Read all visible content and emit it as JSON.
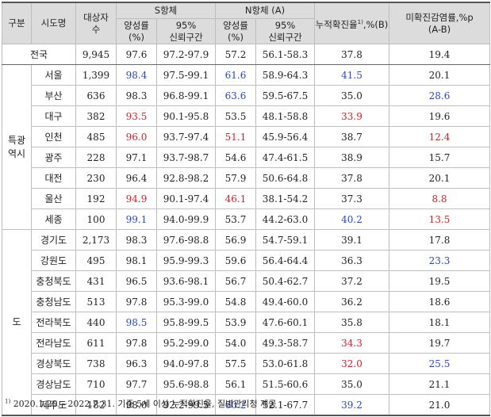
{
  "headers": {
    "group": "구분",
    "region": "시도명",
    "subjects": "대상자\n수",
    "s_antibody": "S항체",
    "n_antibody": "N항체 (A)",
    "cumulative": "누적확진율",
    "cumulative_sup": "1)",
    "cumulative_unit": ",%(B)",
    "undiagnosed": "미확진감염률,%p",
    "undiagnosed_sub": "(A-B)",
    "positivity": "양성률\n(%)",
    "ci": "95%\n신뢰구간"
  },
  "national": {
    "label": "전국",
    "n": "9,945",
    "s_rate": "97.6",
    "s_ci": "97.2-97.9",
    "n_rate": "57.2",
    "n_ci": "56.1-58.3",
    "cum": "37.8",
    "diff": "19.4"
  },
  "groups": [
    {
      "label": "특광\n역시",
      "rows": [
        {
          "region": "서울",
          "n": "1,399",
          "s_rate": "98.4",
          "s_ci": "97.5-99.1",
          "n_rate": "61.6",
          "n_ci": "58.9-64.3",
          "cum": "41.5",
          "diff": "20.1"
        },
        {
          "region": "부산",
          "n": "636",
          "s_rate": "98.3",
          "s_ci": "96.8-99.1",
          "n_rate": "63.6",
          "n_ci": "59.5-67.5",
          "cum": "35.0",
          "diff": "28.6"
        },
        {
          "region": "대구",
          "n": "382",
          "s_rate": "93.5",
          "s_ci": "90.1-95.8",
          "n_rate": "53.5",
          "n_ci": "48.1-58.8",
          "cum": "33.9",
          "diff": "19.6"
        },
        {
          "region": "인천",
          "n": "485",
          "s_rate": "96.0",
          "s_ci": "93.7-97.4",
          "n_rate": "51.1",
          "n_ci": "45.9-56.4",
          "cum": "38.7",
          "diff": "12.4"
        },
        {
          "region": "광주",
          "n": "228",
          "s_rate": "97.1",
          "s_ci": "93.7-98.7",
          "n_rate": "54.6",
          "n_ci": "47.4-61.5",
          "cum": "38.9",
          "diff": "15.7"
        },
        {
          "region": "대전",
          "n": "230",
          "s_rate": "96.4",
          "s_ci": "92.8-98.2",
          "n_rate": "57.9",
          "n_ci": "50.6-64.8",
          "cum": "37.8",
          "diff": "20.1"
        },
        {
          "region": "울산",
          "n": "192",
          "s_rate": "94.9",
          "s_ci": "90.1-97.4",
          "n_rate": "46.1",
          "n_ci": "38.1-54.2",
          "cum": "37.3",
          "diff": "8.8"
        },
        {
          "region": "세종",
          "n": "100",
          "s_rate": "99.1",
          "s_ci": "94.0-99.9",
          "n_rate": "53.7",
          "n_ci": "44.2-63.0",
          "cum": "40.2",
          "diff": "13.5"
        }
      ]
    },
    {
      "label": "도",
      "rows": [
        {
          "region": "경기도",
          "n": "2,173",
          "s_rate": "98.3",
          "s_ci": "97.6-98.8",
          "n_rate": "56.9",
          "n_ci": "54.7-59.1",
          "cum": "39.1",
          "diff": "17.8"
        },
        {
          "region": "강원도",
          "n": "495",
          "s_rate": "98.1",
          "s_ci": "95.9-99.3",
          "n_rate": "59.6",
          "n_ci": "56.4-64.4",
          "cum": "36.3",
          "diff": "23.3"
        },
        {
          "region": "충청북도",
          "n": "431",
          "s_rate": "96.5",
          "s_ci": "93.6-98.1",
          "n_rate": "56.7",
          "n_ci": "50.4-62.7",
          "cum": "37.2",
          "diff": "19.5"
        },
        {
          "region": "충청남도",
          "n": "513",
          "s_rate": "97.8",
          "s_ci": "95.3-99.0",
          "n_rate": "54.8",
          "n_ci": "49.4-60.0",
          "cum": "36.2",
          "diff": "18.6"
        },
        {
          "region": "전라북도",
          "n": "440",
          "s_rate": "98.5",
          "s_ci": "95.8-99.5",
          "n_rate": "53.9",
          "n_ci": "47.6-60.1",
          "cum": "35.8",
          "diff": "18.1"
        },
        {
          "region": "전라남도",
          "n": "611",
          "s_rate": "97.8",
          "s_ci": "95.2-99.0",
          "n_rate": "54.0",
          "n_ci": "49.3-58.7",
          "cum": "34.3",
          "diff": "19.7"
        },
        {
          "region": "경상북도",
          "n": "738",
          "s_rate": "96.3",
          "s_ci": "94.0-97.8",
          "n_rate": "57.5",
          "n_ci": "53.0-61.8",
          "cum": "32.0",
          "diff": "25.5"
        },
        {
          "region": "경상남도",
          "n": "710",
          "s_rate": "97.7",
          "s_ci": "95.6-98.8",
          "n_rate": "56.1",
          "n_ci": "51.5-60.6",
          "cum": "35.0",
          "diff": "21.1"
        },
        {
          "region": "제주도",
          "n": "182",
          "s_rate": "98.0",
          "s_ci": "92.2-99.5",
          "n_rate": "60.2",
          "n_ci": "52.1-67.7",
          "cum": "39.2",
          "diff": "21.0"
        }
      ]
    }
  ],
  "highlight_colors": {
    "low": "#d01f2a",
    "high": "#2a46c2"
  },
  "footnote": {
    "mark": "1)",
    "text": "2020.1.20.~2022.7.31. 기준 5세 이상 누적확진율, 질병관리청 제공"
  }
}
